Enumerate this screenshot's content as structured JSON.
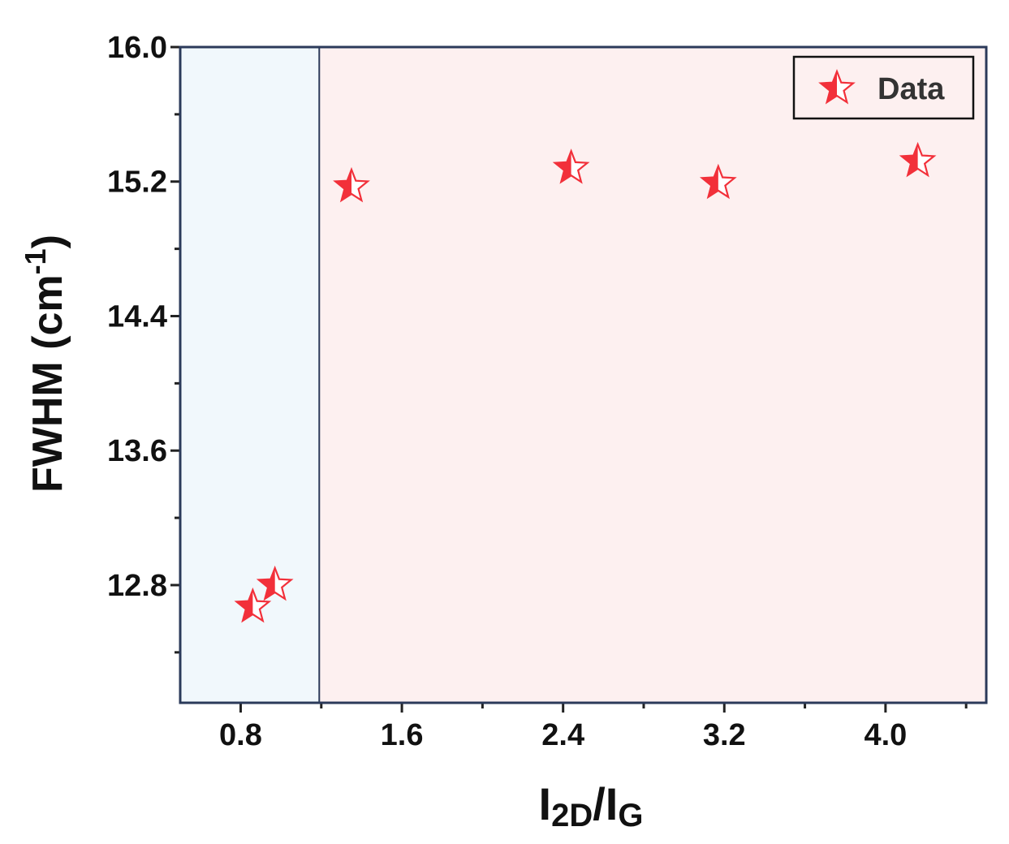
{
  "chart_data": {
    "type": "scatter",
    "xlabel": {
      "main1": "I",
      "sub1": "2D",
      "slash": "/",
      "main2": "I",
      "sub2": "G"
    },
    "ylabel": {
      "base": "FWHM (cm",
      "sup": "-1",
      "close": ")"
    },
    "xlim": [
      0.5,
      4.5
    ],
    "ylim": [
      12.1,
      16.0
    ],
    "x_ticks": [
      0.8,
      1.6,
      2.4,
      3.2,
      4.0
    ],
    "x_tick_labels": [
      "0.8",
      "1.6",
      "2.4",
      "3.2",
      "4.0"
    ],
    "y_ticks": [
      12.8,
      13.6,
      14.4,
      15.2,
      16.0
    ],
    "y_tick_labels": [
      "12.8",
      "13.6",
      "14.4",
      "15.2",
      "16.0"
    ],
    "x_minor_ticks": [
      1.2,
      2.0,
      2.8,
      3.6,
      4.4
    ],
    "y_minor_ticks": [
      12.4,
      13.2,
      14.0,
      14.8,
      15.6
    ],
    "regions": [
      {
        "x_from": 0.5,
        "x_to": 1.19,
        "color": "#f1f8fc"
      },
      {
        "x_from": 1.19,
        "x_to": 4.5,
        "color": "#fdf0f0"
      }
    ],
    "series": [
      {
        "name": "Data",
        "marker": "star",
        "color": "#f2303a",
        "x": [
          0.86,
          0.97,
          1.35,
          2.44,
          3.17,
          4.16
        ],
        "y": [
          12.67,
          12.8,
          15.17,
          15.28,
          15.19,
          15.32
        ]
      }
    ],
    "legend": {
      "position": "top-right",
      "label": "Data"
    },
    "grid": false
  }
}
